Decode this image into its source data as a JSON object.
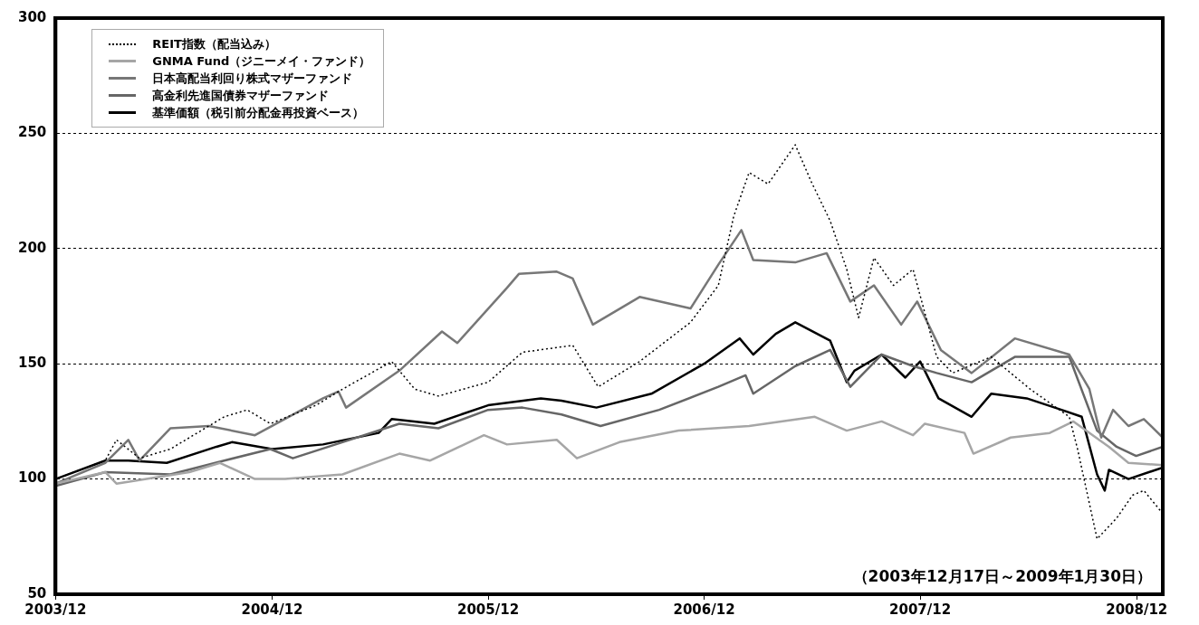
{
  "chart_data": {
    "type": "line",
    "xlim": [
      "2003-12-17",
      "2009-01-30"
    ],
    "xticks": [
      {
        "value": "2003-12-17",
        "label": "2003/12"
      },
      {
        "value": "2004-12-17",
        "label": "2004/12"
      },
      {
        "value": "2005-12-17",
        "label": "2005/12"
      },
      {
        "value": "2006-12-17",
        "label": "2006/12"
      },
      {
        "value": "2007-12-17",
        "label": "2007/12"
      },
      {
        "value": "2008-12-17",
        "label": "2008/12"
      }
    ],
    "ylim": [
      50,
      300
    ],
    "yticks": [
      50,
      100,
      150,
      200,
      250,
      300
    ],
    "grid": "y",
    "legend": "top left",
    "marker": "none",
    "annotations": [
      "（2003年12月17日～2009年1月30日）"
    ],
    "series": [
      {
        "name": "REIT指数（配当込み）",
        "color": "#000000",
        "line_style": "dotted",
        "x": [
          "2003-12-17",
          "2004-03-10",
          "2004-03-29",
          "2004-05-07",
          "2004-06-28",
          "2004-09-27",
          "2004-11-05",
          "2004-12-14",
          "2005-03-01",
          "2005-04-15",
          "2005-07-07",
          "2005-08-15",
          "2005-09-24",
          "2005-12-17",
          "2006-02-13",
          "2006-05-09",
          "2006-06-21",
          "2006-08-30",
          "2006-11-24",
          "2007-01-10",
          "2007-02-05",
          "2007-03-03",
          "2007-04-04",
          "2007-05-20",
          "2007-06-16",
          "2007-07-18",
          "2007-08-15",
          "2007-09-04",
          "2007-09-30",
          "2007-11-02",
          "2007-12-05",
          "2008-01-14",
          "2008-02-10",
          "2008-04-15",
          "2008-06-20",
          "2008-08-25",
          "2008-09-08",
          "2008-10-11",
          "2008-11-13",
          "2008-12-10",
          "2008-12-29",
          "2009-01-30"
        ],
        "values": [
          100,
          108,
          117,
          109,
          113,
          127,
          130,
          124,
          132,
          139,
          151,
          139,
          136,
          142,
          155,
          158,
          140,
          151,
          168,
          184,
          214,
          233,
          228,
          245,
          229,
          212,
          191,
          170,
          196,
          184,
          191,
          153,
          146,
          153,
          139,
          127,
          113,
          74,
          83,
          93,
          95,
          85
        ]
      },
      {
        "name": "GNMA Fund（ジニーメイ・ファンド）",
        "color": "#a6a6a6",
        "line_style": "solid",
        "x": [
          "2003-12-17",
          "2004-03-10",
          "2004-03-29",
          "2004-07-30",
          "2004-09-20",
          "2004-11-18",
          "2005-01-08",
          "2005-04-15",
          "2005-07-20",
          "2005-09-10",
          "2005-12-10",
          "2006-01-18",
          "2006-04-12",
          "2006-05-16",
          "2006-07-27",
          "2006-11-04",
          "2007-03-03",
          "2007-06-22",
          "2007-08-15",
          "2007-10-13",
          "2007-12-05",
          "2007-12-25",
          "2008-03-01",
          "2008-03-16",
          "2008-05-18",
          "2008-07-23",
          "2008-09-01",
          "2008-10-31",
          "2008-12-03",
          "2009-01-30"
        ],
        "values": [
          98,
          103,
          98,
          103,
          107,
          100,
          100,
          102,
          111,
          108,
          119,
          115,
          117,
          109,
          116,
          121,
          123,
          127,
          121,
          125,
          119,
          124,
          120,
          111,
          118,
          120,
          125,
          114,
          107,
          106
        ]
      },
      {
        "name": "日本高配当利回り株式マザーファンド",
        "color": "#777777",
        "line_style": "solid",
        "x": [
          "2003-12-17",
          "2004-03-10",
          "2004-04-18",
          "2004-05-07",
          "2004-06-28",
          "2004-09-01",
          "2004-11-18",
          "2005-03-13",
          "2005-04-08",
          "2005-04-21",
          "2005-07-20",
          "2005-09-30",
          "2005-10-26",
          "2006-01-18",
          "2006-02-07",
          "2006-04-12",
          "2006-05-09",
          "2006-06-12",
          "2006-08-30",
          "2006-11-24",
          "2007-01-10",
          "2007-02-18",
          "2007-03-10",
          "2007-05-20",
          "2007-07-12",
          "2007-08-21",
          "2007-09-30",
          "2007-11-15",
          "2007-12-12",
          "2008-01-21",
          "2008-03-13",
          "2008-05-25",
          "2008-08-25",
          "2008-09-28",
          "2008-10-18",
          "2008-11-07",
          "2008-12-03",
          "2008-12-29",
          "2009-01-30"
        ],
        "values": [
          98,
          107,
          117,
          108,
          122,
          123,
          119,
          135,
          138,
          131,
          147,
          164,
          159,
          183,
          189,
          190,
          187,
          167,
          179,
          174,
          193,
          208,
          195,
          194,
          198,
          177,
          184,
          167,
          177,
          156,
          146,
          161,
          154,
          139,
          118,
          130,
          123,
          126,
          118
        ]
      },
      {
        "name": "高金利先進国債券マザーファンド",
        "color": "#666666",
        "line_style": "solid",
        "x": [
          "2003-12-17",
          "2004-03-10",
          "2004-06-28",
          "2004-09-27",
          "2004-12-14",
          "2005-01-21",
          "2005-04-15",
          "2005-07-20",
          "2005-09-24",
          "2005-12-17",
          "2006-02-13",
          "2006-04-20",
          "2006-06-25",
          "2006-10-02",
          "2007-01-10",
          "2007-02-25",
          "2007-03-10",
          "2007-05-20",
          "2007-07-18",
          "2007-08-21",
          "2007-10-13",
          "2007-12-05",
          "2008-01-14",
          "2008-03-13",
          "2008-05-25",
          "2008-08-25",
          "2008-10-11",
          "2008-11-13",
          "2008-12-16",
          "2009-01-30"
        ],
        "values": [
          97,
          103,
          102,
          108,
          113,
          109,
          116,
          124,
          122,
          130,
          131,
          128,
          123,
          130,
          140,
          145,
          137,
          149,
          156,
          140,
          154,
          149,
          146,
          142,
          153,
          153,
          121,
          114,
          110,
          114
        ]
      },
      {
        "name": "基準価額（税引前分配金再投資ベース）",
        "color": "#000000",
        "line_style": "solid",
        "x": [
          "2003-12-17",
          "2004-03-10",
          "2004-04-18",
          "2004-06-22",
          "2004-09-14",
          "2004-10-10",
          "2004-12-17",
          "2005-03-13",
          "2005-06-15",
          "2005-07-07",
          "2005-09-17",
          "2005-12-17",
          "2006-03-16",
          "2006-04-20",
          "2006-06-18",
          "2006-09-19",
          "2006-12-17",
          "2007-02-15",
          "2007-03-10",
          "2007-04-17",
          "2007-05-20",
          "2007-07-18",
          "2007-08-15",
          "2007-08-28",
          "2007-10-13",
          "2007-11-22",
          "2007-12-17",
          "2008-01-17",
          "2008-03-13",
          "2008-04-15",
          "2008-06-14",
          "2008-08-12",
          "2008-09-15",
          "2008-10-11",
          "2008-10-24",
          "2008-10-31",
          "2008-12-03",
          "2009-01-30"
        ],
        "values": [
          100,
          108,
          108,
          107,
          114,
          116,
          113,
          115,
          120,
          126,
          124,
          132,
          135,
          134,
          131,
          137,
          150,
          161,
          154,
          163,
          168,
          160,
          142,
          147,
          154,
          144,
          151,
          135,
          127,
          137,
          135,
          130,
          127,
          102,
          95,
          104,
          100,
          105
        ]
      }
    ]
  }
}
